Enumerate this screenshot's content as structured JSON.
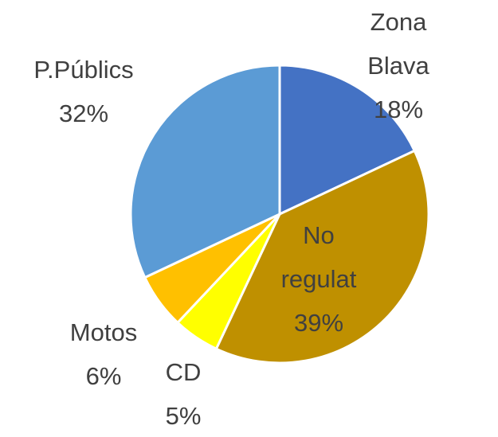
{
  "chart_data": {
    "type": "pie",
    "categories": [
      "Zona Blava",
      "No regulat",
      "CD",
      "Motos",
      "P.Públics"
    ],
    "values": [
      18,
      39,
      5,
      6,
      32
    ],
    "value_labels": [
      "18%",
      "39%",
      "5%",
      "6%",
      "32%"
    ],
    "colors": [
      "#4472c4",
      "#bf9000",
      "#ffff00",
      "#ffc000",
      "#5b9bd5"
    ]
  }
}
